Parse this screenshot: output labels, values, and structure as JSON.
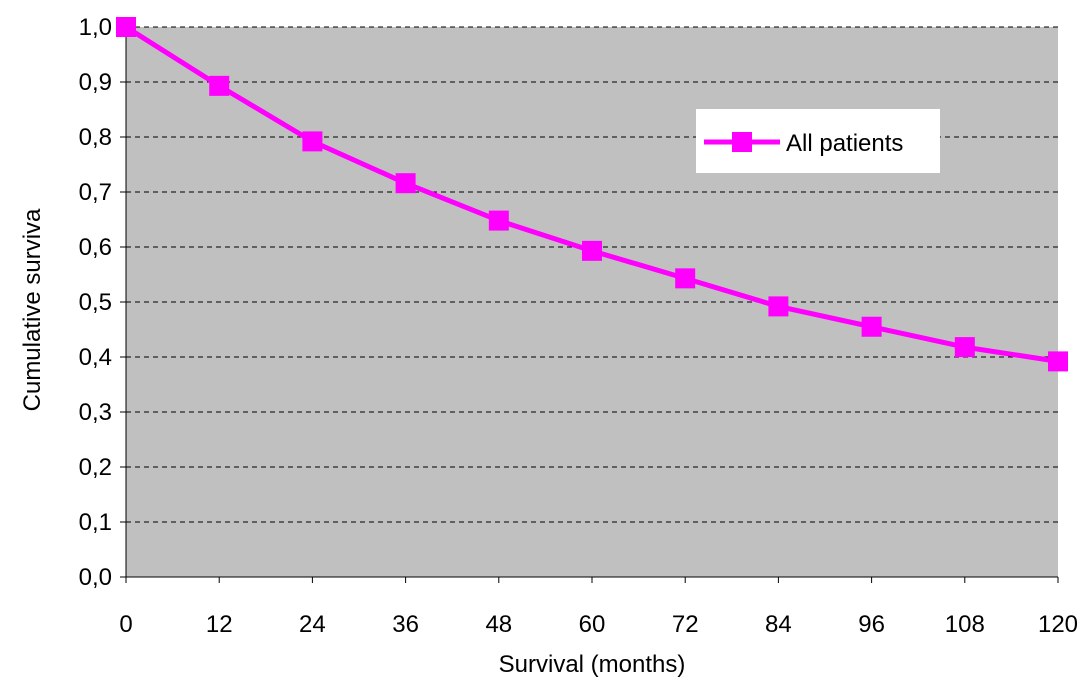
{
  "chart_data": {
    "type": "line",
    "xlabel": "Survival (months)",
    "ylabel": "Cumulative surviva",
    "x": [
      0,
      12,
      24,
      36,
      48,
      60,
      72,
      84,
      96,
      108,
      120
    ],
    "x_tick_labels": [
      "0",
      "12",
      "24",
      "36",
      "48",
      "60",
      "72",
      "84",
      "96",
      "108",
      "120"
    ],
    "y_tick_labels": [
      "0,0",
      "0,1",
      "0,2",
      "0,3",
      "0,4",
      "0,5",
      "0,6",
      "0,7",
      "0,8",
      "0,9",
      "1,0"
    ],
    "xlim": [
      0,
      120
    ],
    "ylim": [
      0,
      1
    ],
    "y_tick_step": 0.1,
    "grid": "horizontal dashed",
    "legend_position": "top-right",
    "series": [
      {
        "name": "All patients",
        "values": [
          1.0,
          0.893,
          0.792,
          0.716,
          0.648,
          0.593,
          0.543,
          0.492,
          0.455,
          0.418,
          0.392
        ],
        "color": "#ff00ff",
        "marker": "square"
      }
    ],
    "plot_background": "#c0c0c0"
  }
}
